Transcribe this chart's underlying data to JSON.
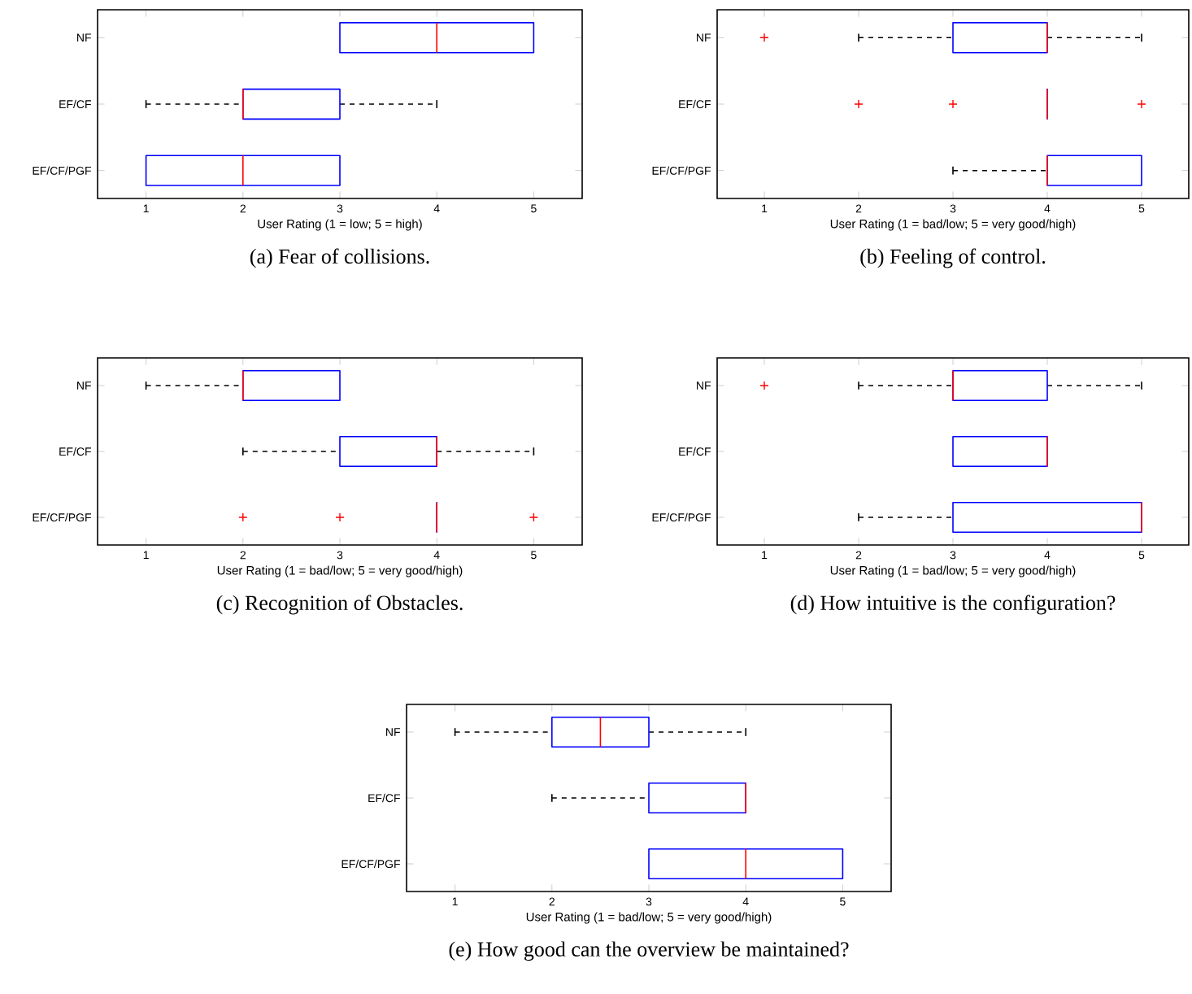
{
  "chart_data": [
    {
      "type": "box",
      "orientation": "horizontal",
      "title": "(a) Fear of collisions.",
      "xlabel": "User Rating (1 = low; 5 = high)",
      "categories": [
        "NF",
        "EF/CF",
        "EF/CF/PGF"
      ],
      "color": "#0000ff",
      "xlim": [
        0.5,
        5.5
      ],
      "xticks": [
        1,
        2,
        3,
        4,
        5
      ],
      "grid": false,
      "boxes": [
        {
          "low": 3,
          "q1": 3,
          "median": 4,
          "q3": 5,
          "high": 5
        },
        {
          "low": 1,
          "q1": 2,
          "median": 2,
          "q3": 3,
          "high": 4
        },
        {
          "low": 1,
          "q1": 1,
          "median": 2,
          "q3": 3,
          "high": 3
        }
      ]
    },
    {
      "type": "box",
      "orientation": "horizontal",
      "title": "(b) Feeling of control.",
      "xlabel": "User Rating (1 = bad/low; 5 = very good/high)",
      "categories": [
        "NF",
        "EF/CF",
        "EF/CF/PGF"
      ],
      "color": "#0000ff",
      "xlim": [
        0.5,
        5.5
      ],
      "xticks": [
        1,
        2,
        3,
        4,
        5
      ],
      "grid": false,
      "boxes": [
        {
          "low": 2,
          "q1": 3,
          "median": 4,
          "q3": 4,
          "high": 5,
          "outliers": [
            1
          ]
        },
        {
          "low": 4,
          "q1": 4,
          "median": 4,
          "q3": 4,
          "high": 4,
          "outliers": [
            2,
            3,
            5
          ]
        },
        {
          "low": 3,
          "q1": 4,
          "median": 4,
          "q3": 5,
          "high": 5
        }
      ]
    },
    {
      "type": "box",
      "orientation": "horizontal",
      "title": "(c) Recognition of Obstacles.",
      "xlabel": "User Rating (1 = bad/low; 5 = very good/high)",
      "categories": [
        "NF",
        "EF/CF",
        "EF/CF/PGF"
      ],
      "color": "#0000ff",
      "xlim": [
        0.5,
        5.5
      ],
      "xticks": [
        1,
        2,
        3,
        4,
        5
      ],
      "grid": false,
      "boxes": [
        {
          "low": 1,
          "q1": 2,
          "median": 2,
          "q3": 3,
          "high": 3
        },
        {
          "low": 2,
          "q1": 3,
          "median": 4,
          "q3": 4,
          "high": 5
        },
        {
          "low": 4,
          "q1": 4,
          "median": 4,
          "q3": 4,
          "high": 4,
          "outliers": [
            2,
            3,
            5
          ]
        }
      ]
    },
    {
      "type": "box",
      "orientation": "horizontal",
      "title": "(d) How intuitive is the configuration?",
      "xlabel": "User Rating (1 = bad/low; 5 = very good/high)",
      "categories": [
        "NF",
        "EF/CF",
        "EF/CF/PGF"
      ],
      "color": "#0000ff",
      "xlim": [
        0.5,
        5.5
      ],
      "xticks": [
        1,
        2,
        3,
        4,
        5
      ],
      "grid": false,
      "boxes": [
        {
          "low": 2,
          "q1": 3,
          "median": 3,
          "q3": 4,
          "high": 5,
          "outliers": [
            1
          ]
        },
        {
          "low": 3,
          "q1": 3,
          "median": 4,
          "q3": 4,
          "high": 4
        },
        {
          "low": 2,
          "q1": 3,
          "median": 5,
          "q3": 5,
          "high": 5
        }
      ]
    },
    {
      "type": "box",
      "orientation": "horizontal",
      "title": "(e) How good can the overview be maintained?",
      "xlabel": "User Rating (1 = bad/low; 5 = very good/high)",
      "categories": [
        "NF",
        "EF/CF",
        "EF/CF/PGF"
      ],
      "color": "#0000ff",
      "xlim": [
        0.5,
        5.5
      ],
      "xticks": [
        1,
        2,
        3,
        4,
        5
      ],
      "grid": false,
      "boxes": [
        {
          "low": 1,
          "q1": 2,
          "median": 2.5,
          "q3": 3,
          "high": 4
        },
        {
          "low": 2,
          "q1": 3,
          "median": 4,
          "q3": 4,
          "high": 4
        },
        {
          "low": 3,
          "q1": 3,
          "median": 4,
          "q3": 5,
          "high": 5
        }
      ]
    }
  ]
}
